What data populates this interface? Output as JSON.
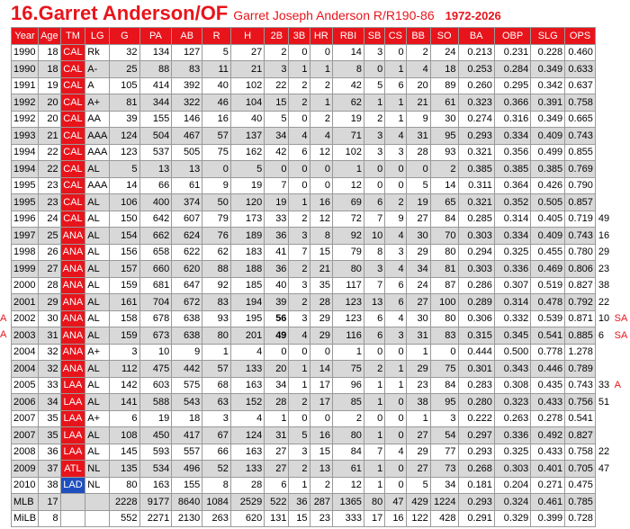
{
  "header": {
    "title": "16.Garret Anderson/OF",
    "subtitle": "Garret Joseph Anderson R/R190-86",
    "years": "1972-2026"
  },
  "table": {
    "columns": [
      "Year",
      "Age",
      "TM",
      "LG",
      "G",
      "PA",
      "AB",
      "R",
      "H",
      "2B",
      "3B",
      "HR",
      "RBI",
      "SB",
      "CS",
      "BB",
      "SO",
      "BA",
      "OBP",
      "SLG",
      "OPS"
    ],
    "team_colors": {
      "CAL": "#e8141b",
      "ANA": "#e8141b",
      "LAA": "#e8141b",
      "ATL": "#e8141b",
      "LAD": "#1f4fbf"
    },
    "rows": [
      {
        "cells": [
          "1990",
          "18",
          "CAL",
          "Rk",
          "32",
          "134",
          "127",
          "5",
          "27",
          "2",
          "0",
          "0",
          "14",
          "3",
          "0",
          "2",
          "24",
          "0.213",
          "0.231",
          "0.228",
          "0.460"
        ]
      },
      {
        "cells": [
          "1990",
          "18",
          "CAL",
          "A-",
          "25",
          "88",
          "83",
          "11",
          "21",
          "3",
          "1",
          "1",
          "8",
          "0",
          "1",
          "4",
          "18",
          "0.253",
          "0.284",
          "0.349",
          "0.633"
        ]
      },
      {
        "cells": [
          "1991",
          "19",
          "CAL",
          "A",
          "105",
          "414",
          "392",
          "40",
          "102",
          "22",
          "2",
          "2",
          "42",
          "5",
          "6",
          "20",
          "89",
          "0.260",
          "0.295",
          "0.342",
          "0.637"
        ]
      },
      {
        "cells": [
          "1992",
          "20",
          "CAL",
          "A+",
          "81",
          "344",
          "322",
          "46",
          "104",
          "15",
          "2",
          "1",
          "62",
          "1",
          "1",
          "21",
          "61",
          "0.323",
          "0.366",
          "0.391",
          "0.758"
        ]
      },
      {
        "cells": [
          "1992",
          "20",
          "CAL",
          "AA",
          "39",
          "155",
          "146",
          "16",
          "40",
          "5",
          "0",
          "2",
          "19",
          "2",
          "1",
          "9",
          "30",
          "0.274",
          "0.316",
          "0.349",
          "0.665"
        ]
      },
      {
        "cells": [
          "1993",
          "21",
          "CAL",
          "AAA",
          "124",
          "504",
          "467",
          "57",
          "137",
          "34",
          "4",
          "4",
          "71",
          "3",
          "4",
          "31",
          "95",
          "0.293",
          "0.334",
          "0.409",
          "0.743"
        ]
      },
      {
        "cells": [
          "1994",
          "22",
          "CAL",
          "AAA",
          "123",
          "537",
          "505",
          "75",
          "162",
          "42",
          "6",
          "12",
          "102",
          "3",
          "3",
          "28",
          "93",
          "0.321",
          "0.356",
          "0.499",
          "0.855"
        ]
      },
      {
        "cells": [
          "1994",
          "22",
          "CAL",
          "AL",
          "5",
          "13",
          "13",
          "0",
          "5",
          "0",
          "0",
          "0",
          "1",
          "0",
          "0",
          "0",
          "2",
          "0.385",
          "0.385",
          "0.385",
          "0.769"
        ]
      },
      {
        "cells": [
          "1995",
          "23",
          "CAL",
          "AAA",
          "14",
          "66",
          "61",
          "9",
          "19",
          "7",
          "0",
          "0",
          "12",
          "0",
          "0",
          "5",
          "14",
          "0.311",
          "0.364",
          "0.426",
          "0.790"
        ]
      },
      {
        "cells": [
          "1995",
          "23",
          "CAL",
          "AL",
          "106",
          "400",
          "374",
          "50",
          "120",
          "19",
          "1",
          "16",
          "69",
          "6",
          "2",
          "19",
          "65",
          "0.321",
          "0.352",
          "0.505",
          "0.857"
        ]
      },
      {
        "cells": [
          "1996",
          "24",
          "CAL",
          "AL",
          "150",
          "642",
          "607",
          "79",
          "173",
          "33",
          "2",
          "12",
          "72",
          "7",
          "9",
          "27",
          "84",
          "0.285",
          "0.314",
          "0.405",
          "0.719"
        ],
        "notes": [
          "49"
        ]
      },
      {
        "cells": [
          "1997",
          "25",
          "ANA",
          "AL",
          "154",
          "662",
          "624",
          "76",
          "189",
          "36",
          "3",
          "8",
          "92",
          "10",
          "4",
          "30",
          "70",
          "0.303",
          "0.334",
          "0.409",
          "0.743"
        ],
        "notes": [
          "16"
        ]
      },
      {
        "cells": [
          "1998",
          "26",
          "ANA",
          "AL",
          "156",
          "658",
          "622",
          "62",
          "183",
          "41",
          "7",
          "15",
          "79",
          "8",
          "3",
          "29",
          "80",
          "0.294",
          "0.325",
          "0.455",
          "0.780"
        ],
        "notes": [
          "29"
        ]
      },
      {
        "cells": [
          "1999",
          "27",
          "ANA",
          "AL",
          "157",
          "660",
          "620",
          "88",
          "188",
          "36",
          "2",
          "21",
          "80",
          "3",
          "4",
          "34",
          "81",
          "0.303",
          "0.336",
          "0.469",
          "0.806"
        ],
        "notes": [
          "23"
        ]
      },
      {
        "cells": [
          "2000",
          "28",
          "ANA",
          "AL",
          "159",
          "681",
          "647",
          "92",
          "185",
          "40",
          "3",
          "35",
          "117",
          "7",
          "6",
          "24",
          "87",
          "0.286",
          "0.307",
          "0.519",
          "0.827"
        ],
        "notes": [
          "38"
        ]
      },
      {
        "cells": [
          "2001",
          "29",
          "ANA",
          "AL",
          "161",
          "704",
          "672",
          "83",
          "194",
          "39",
          "2",
          "28",
          "123",
          "13",
          "6",
          "27",
          "100",
          "0.289",
          "0.314",
          "0.478",
          "0.792"
        ],
        "notes": [
          "22"
        ]
      },
      {
        "cells": [
          "2002",
          "30",
          "ANA",
          "AL",
          "158",
          "678",
          "638",
          "93",
          "195",
          "56",
          "3",
          "29",
          "123",
          "6",
          "4",
          "30",
          "80",
          "0.306",
          "0.332",
          "0.539",
          "0.871"
        ],
        "notes": [
          "10",
          "SA"
        ],
        "left": "A",
        "bold": "2B"
      },
      {
        "cells": [
          "2003",
          "31",
          "ANA",
          "AL",
          "159",
          "673",
          "638",
          "80",
          "201",
          "49",
          "4",
          "29",
          "116",
          "6",
          "3",
          "31",
          "83",
          "0.315",
          "0.345",
          "0.541",
          "0.885"
        ],
        "notes": [
          "6",
          "SA"
        ],
        "left": "A",
        "bold": "2B"
      },
      {
        "cells": [
          "2004",
          "32",
          "ANA",
          "A+",
          "3",
          "10",
          "9",
          "1",
          "4",
          "0",
          "0",
          "0",
          "1",
          "0",
          "0",
          "1",
          "0",
          "0.444",
          "0.500",
          "0.778",
          "1.278"
        ]
      },
      {
        "cells": [
          "2004",
          "32",
          "ANA",
          "AL",
          "112",
          "475",
          "442",
          "57",
          "133",
          "20",
          "1",
          "14",
          "75",
          "2",
          "1",
          "29",
          "75",
          "0.301",
          "0.343",
          "0.446",
          "0.789"
        ]
      },
      {
        "cells": [
          "2005",
          "33",
          "LAA",
          "AL",
          "142",
          "603",
          "575",
          "68",
          "163",
          "34",
          "1",
          "17",
          "96",
          "1",
          "1",
          "23",
          "84",
          "0.283",
          "0.308",
          "0.435",
          "0.743"
        ],
        "notes": [
          "33",
          "A"
        ]
      },
      {
        "cells": [
          "2006",
          "34",
          "LAA",
          "AL",
          "141",
          "588",
          "543",
          "63",
          "152",
          "28",
          "2",
          "17",
          "85",
          "1",
          "0",
          "38",
          "95",
          "0.280",
          "0.323",
          "0.433",
          "0.756"
        ],
        "notes": [
          "51"
        ]
      },
      {
        "cells": [
          "2007",
          "35",
          "LAA",
          "A+",
          "6",
          "19",
          "18",
          "3",
          "4",
          "1",
          "0",
          "0",
          "2",
          "0",
          "0",
          "1",
          "3",
          "0.222",
          "0.263",
          "0.278",
          "0.541"
        ]
      },
      {
        "cells": [
          "2007",
          "35",
          "LAA",
          "AL",
          "108",
          "450",
          "417",
          "67",
          "124",
          "31",
          "5",
          "16",
          "80",
          "1",
          "0",
          "27",
          "54",
          "0.297",
          "0.336",
          "0.492",
          "0.827"
        ]
      },
      {
        "cells": [
          "2008",
          "36",
          "LAA",
          "AL",
          "145",
          "593",
          "557",
          "66",
          "163",
          "27",
          "3",
          "15",
          "84",
          "7",
          "4",
          "29",
          "77",
          "0.293",
          "0.325",
          "0.433",
          "0.758"
        ],
        "notes": [
          "22"
        ]
      },
      {
        "cells": [
          "2009",
          "37",
          "ATL",
          "NL",
          "135",
          "534",
          "496",
          "52",
          "133",
          "27",
          "2",
          "13",
          "61",
          "1",
          "0",
          "27",
          "73",
          "0.268",
          "0.303",
          "0.401",
          "0.705"
        ],
        "notes": [
          "47"
        ]
      },
      {
        "cells": [
          "2010",
          "38",
          "LAD",
          "NL",
          "80",
          "163",
          "155",
          "8",
          "28",
          "6",
          "1",
          "2",
          "12",
          "1",
          "0",
          "5",
          "34",
          "0.181",
          "0.204",
          "0.271",
          "0.475"
        ]
      },
      {
        "cells": [
          "MLB",
          "17",
          null,
          null,
          "2228",
          "9177",
          "8640",
          "1084",
          "2529",
          "522",
          "36",
          "287",
          "1365",
          "80",
          "47",
          "429",
          "1224",
          "0.293",
          "0.324",
          "0.461",
          "0.785"
        ]
      },
      {
        "cells": [
          "MiLB",
          "8",
          null,
          null,
          "552",
          "2271",
          "2130",
          "263",
          "620",
          "131",
          "15",
          "23",
          "333",
          "17",
          "16",
          "122",
          "428",
          "0.291",
          "0.329",
          "0.399",
          "0.728"
        ]
      }
    ]
  }
}
